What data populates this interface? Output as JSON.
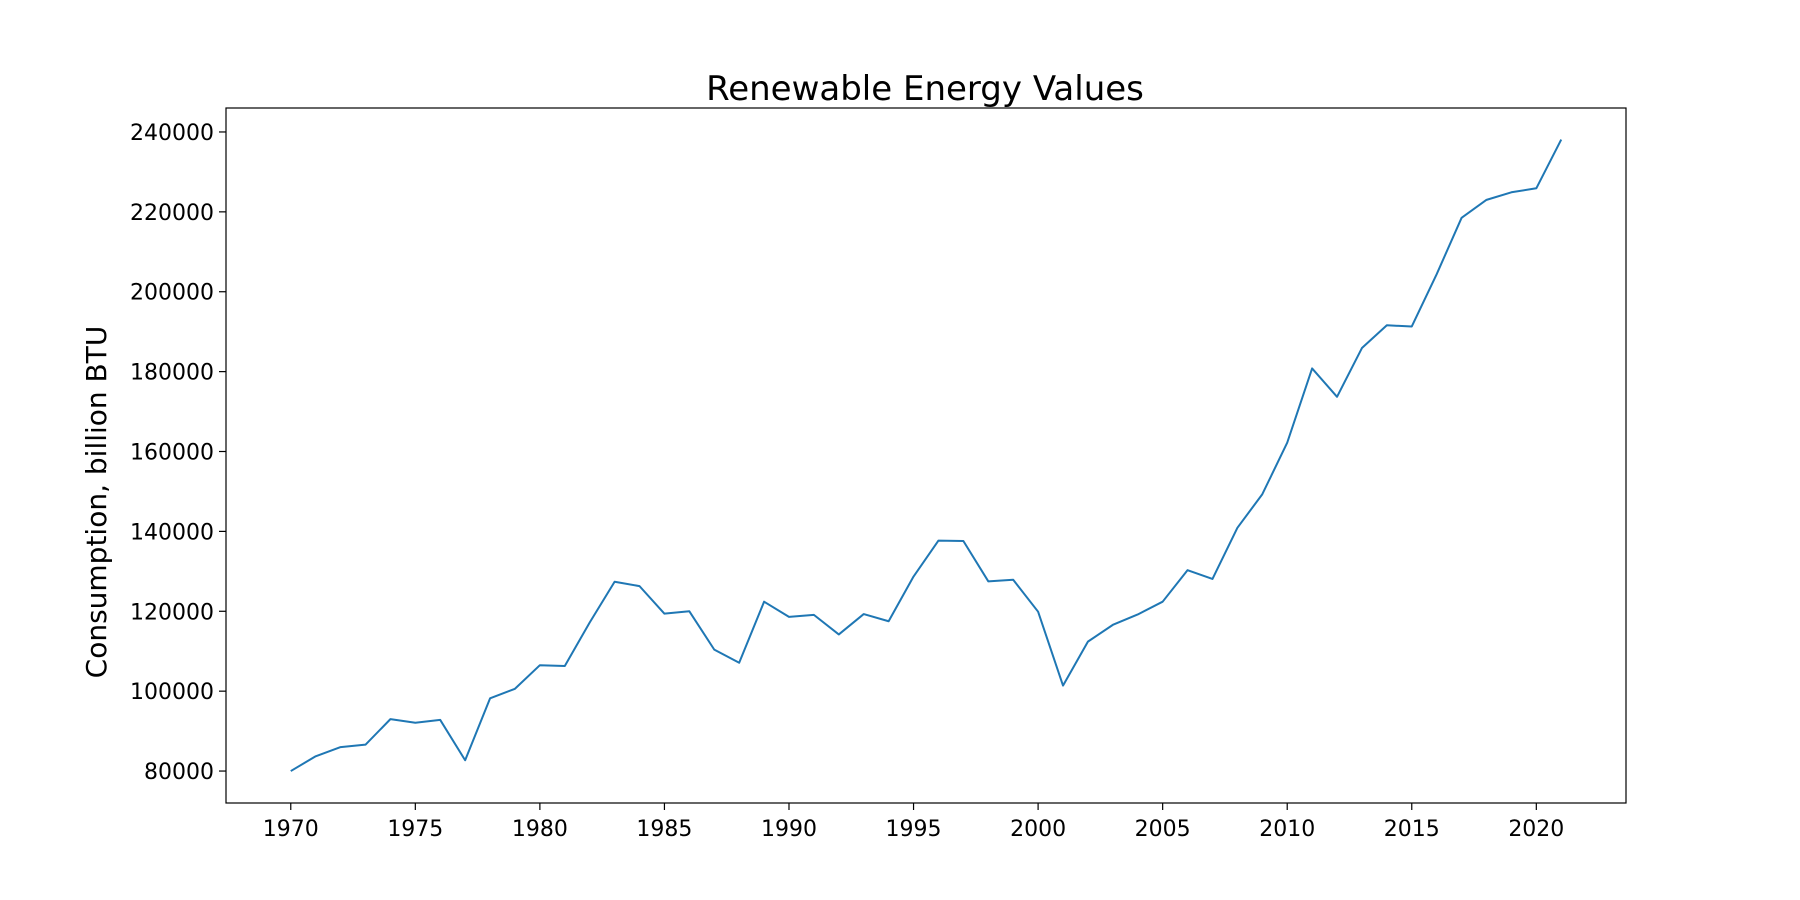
{
  "chart_data": {
    "type": "line",
    "title": "Renewable Energy Values",
    "xlabel": "",
    "ylabel": "Consumption, billion BTU",
    "xlim": [
      1967.4,
      2023.6
    ],
    "ylim": [
      72000,
      246000
    ],
    "x_ticks": [
      1970,
      1975,
      1980,
      1985,
      1990,
      1995,
      2000,
      2005,
      2010,
      2015,
      2020
    ],
    "y_ticks": [
      80000,
      100000,
      120000,
      140000,
      160000,
      180000,
      200000,
      220000,
      240000
    ],
    "grid": false,
    "legend": "none",
    "colors": {
      "line": "#1f77b4",
      "axes": "#000000"
    },
    "x": [
      1970,
      1971,
      1972,
      1973,
      1974,
      1975,
      1976,
      1977,
      1978,
      1979,
      1980,
      1981,
      1982,
      1983,
      1984,
      1985,
      1986,
      1987,
      1988,
      1989,
      1990,
      1991,
      1992,
      1993,
      1994,
      1995,
      1996,
      1997,
      1998,
      1999,
      2000,
      2001,
      2002,
      2003,
      2004,
      2005,
      2006,
      2007,
      2008,
      2009,
      2010,
      2011,
      2012,
      2013,
      2014,
      2015,
      2016,
      2017,
      2018,
      2019,
      2020,
      2021
    ],
    "series": [
      {
        "values": [
          80000,
          83700,
          86000,
          86600,
          93000,
          92100,
          92800,
          82700,
          98200,
          100600,
          106500,
          106300,
          117200,
          127400,
          126300,
          119400,
          120000,
          110400,
          107100,
          122400,
          118600,
          119100,
          114200,
          119300,
          117500,
          128700,
          137700,
          137600,
          127500,
          127900,
          119900,
          101400,
          112400,
          116600,
          119200,
          122400,
          130300,
          128100,
          140900,
          149300,
          162200,
          180800,
          173700,
          185900,
          191600,
          191300,
          204400,
          218500,
          223000,
          224900,
          225900,
          238100
        ]
      }
    ]
  }
}
